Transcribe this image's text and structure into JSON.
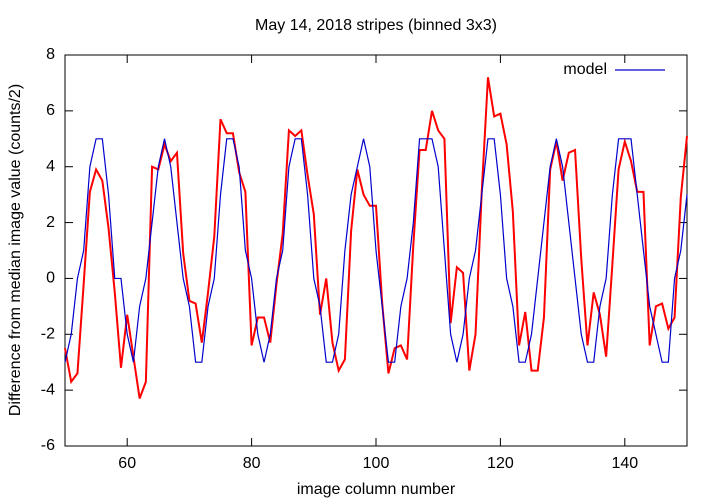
{
  "chart_data": {
    "type": "line",
    "title": "May 14, 2018 stripes (binned 3x3)",
    "xlabel": "image column number",
    "ylabel": "Difference from median image value (counts/2)",
    "x": [
      50,
      51,
      52,
      53,
      54,
      55,
      56,
      57,
      58,
      59,
      60,
      61,
      62,
      63,
      64,
      65,
      66,
      67,
      68,
      69,
      70,
      71,
      72,
      73,
      74,
      75,
      76,
      77,
      78,
      79,
      80,
      81,
      82,
      83,
      84,
      85,
      86,
      87,
      88,
      89,
      90,
      91,
      92,
      93,
      94,
      95,
      96,
      97,
      98,
      99,
      100,
      101,
      102,
      103,
      104,
      105,
      106,
      107,
      108,
      109,
      110,
      111,
      112,
      113,
      114,
      115,
      116,
      117,
      118,
      119,
      120,
      121,
      122,
      123,
      124,
      125,
      126,
      127,
      128,
      129,
      130,
      131,
      132,
      133,
      134,
      135,
      136,
      137,
      138,
      139,
      140,
      141,
      142,
      143,
      144,
      145,
      146,
      147,
      148,
      149,
      150
    ],
    "series": [
      {
        "color": "#ff0000",
        "values": [
          -2.5,
          -3.7,
          -3.4,
          -0.2,
          3.1,
          3.9,
          3.5,
          1.8,
          -0.5,
          -3.2,
          -1.3,
          -2.8,
          -4.3,
          -3.7,
          4.0,
          3.9,
          4.8,
          4.2,
          4.5,
          0.9,
          -0.8,
          -0.9,
          -2.3,
          -0.5,
          1.5,
          5.7,
          5.2,
          5.2,
          3.8,
          3.1,
          -2.4,
          -1.4,
          -1.4,
          -2.3,
          -0.2,
          1.6,
          5.3,
          5.1,
          5.3,
          3.7,
          2.3,
          -1.3,
          0,
          -2.3,
          -3.3,
          -2.9,
          1.7,
          3.9,
          3.0,
          2.6,
          2.6,
          -0.9,
          -3.4,
          -2.5,
          -2.4,
          -2.9,
          1.2,
          4.6,
          4.6,
          6.0,
          5.3,
          5.0,
          -1.6,
          0.4,
          0.2,
          -3.3,
          -2.0,
          3.1,
          7.2,
          5.8,
          5.9,
          4.8,
          2.4,
          -2.4,
          -1.2,
          -3.3,
          -3.3,
          -1.4,
          3.9,
          4.9,
          3.5,
          4.5,
          4.6,
          0.7,
          -2.4,
          -0.5,
          -1.3,
          -2.8,
          0.5,
          3.9,
          4.9,
          4.2,
          3.1,
          3.1,
          -2.4,
          -1.0,
          -0.9,
          -1.8,
          -1.4,
          2.9,
          5.1
        ]
      },
      {
        "name": "model",
        "color": "#0000cc",
        "values": [
          -3,
          -2,
          0,
          1,
          4,
          5,
          5,
          3,
          0,
          0,
          -2,
          -3,
          -1,
          0,
          2,
          4,
          5,
          4,
          2,
          0,
          -1,
          -3,
          -3,
          -1,
          0,
          3,
          5,
          5,
          4,
          1,
          0,
          -2,
          -3,
          -2,
          0,
          1,
          4,
          5,
          5,
          3,
          0,
          -1,
          -3,
          -3,
          -2,
          1,
          3,
          4,
          5,
          4,
          1,
          -1,
          -3,
          -3,
          -1,
          0,
          2,
          5,
          5,
          5,
          4,
          1,
          -2,
          -3,
          -2,
          0,
          1,
          3,
          5,
          5,
          3,
          0,
          -1,
          -3,
          -3,
          -2,
          0,
          2,
          4,
          5,
          4,
          2,
          0,
          -2,
          -3,
          -3,
          -1,
          0,
          3,
          5,
          5,
          5,
          3,
          1,
          -1,
          -2,
          -3,
          -3,
          0,
          1,
          3
        ]
      }
    ],
    "xlim": [
      50,
      150
    ],
    "xticks": [
      60,
      80,
      100,
      120,
      140
    ],
    "ylim": [
      -6,
      8
    ],
    "yticks": [
      -6,
      -4,
      -2,
      0,
      2,
      4,
      6,
      8
    ],
    "legend": "upper right"
  }
}
